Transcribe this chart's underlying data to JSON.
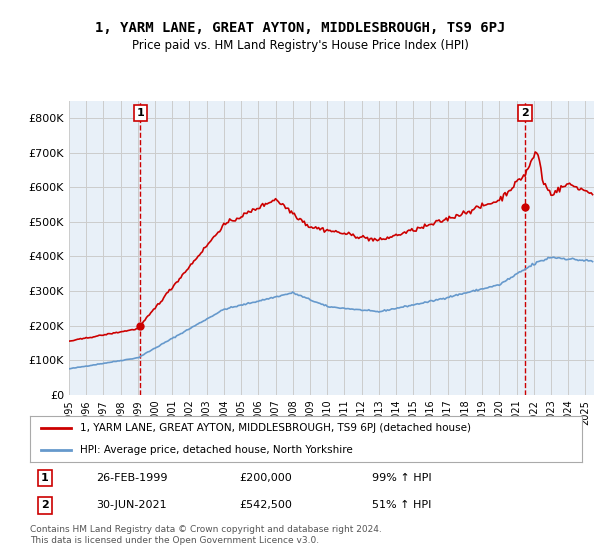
{
  "title": "1, YARM LANE, GREAT AYTON, MIDDLESBROUGH, TS9 6PJ",
  "subtitle": "Price paid vs. HM Land Registry's House Price Index (HPI)",
  "background_color": "#ffffff",
  "grid_color": "#cccccc",
  "property_color": "#cc0000",
  "hpi_color": "#6699cc",
  "dashed_color": "#cc0000",
  "ylim_min": 0,
  "ylim_max": 850000,
  "yticks": [
    0,
    100000,
    200000,
    300000,
    400000,
    500000,
    600000,
    700000,
    800000
  ],
  "ytick_labels": [
    "£0",
    "£100K",
    "£200K",
    "£300K",
    "£400K",
    "£500K",
    "£600K",
    "£700K",
    "£800K"
  ],
  "legend_property": "1, YARM LANE, GREAT AYTON, MIDDLESBROUGH, TS9 6PJ (detached house)",
  "legend_hpi": "HPI: Average price, detached house, North Yorkshire",
  "sale1_label": "1",
  "sale1_date": "26-FEB-1999",
  "sale1_price": "£200,000",
  "sale1_hpi": "99% ↑ HPI",
  "sale1_x": 1999.15,
  "sale1_y": 200000,
  "sale2_label": "2",
  "sale2_date": "30-JUN-2021",
  "sale2_price": "£542,500",
  "sale2_hpi": "51% ↑ HPI",
  "sale2_x": 2021.5,
  "sale2_y": 542500,
  "footnote": "Contains HM Land Registry data © Crown copyright and database right 2024.\nThis data is licensed under the Open Government Licence v3.0.",
  "xlim_min": 1995,
  "xlim_max": 2025.5,
  "xtick_years": [
    1995,
    1996,
    1997,
    1998,
    1999,
    2000,
    2001,
    2002,
    2003,
    2004,
    2005,
    2006,
    2007,
    2008,
    2009,
    2010,
    2011,
    2012,
    2013,
    2014,
    2015,
    2016,
    2017,
    2018,
    2019,
    2020,
    2021,
    2022,
    2023,
    2024,
    2025
  ]
}
